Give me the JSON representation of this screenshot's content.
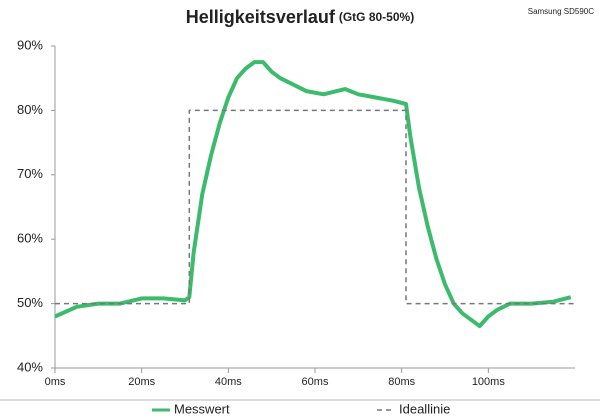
{
  "chart_data": {
    "type": "line",
    "title": "Helligkeitsverlauf",
    "subtitle": "(GtG 80-50%)",
    "note": "Samsung SD590C",
    "xlim": [
      0,
      120
    ],
    "xticks": [
      {
        "value": 0,
        "label": "0ms"
      },
      {
        "value": 20,
        "label": "20ms"
      },
      {
        "value": 40,
        "label": "40ms"
      },
      {
        "value": 60,
        "label": "60ms"
      },
      {
        "value": 80,
        "label": "80ms"
      },
      {
        "value": 100,
        "label": "100ms"
      }
    ],
    "ylim": [
      40,
      90
    ],
    "yticks": [
      {
        "value": 40,
        "label": "40%"
      },
      {
        "value": 50,
        "label": "50%"
      },
      {
        "value": 60,
        "label": "60%"
      },
      {
        "value": 70,
        "label": "70%"
      },
      {
        "value": 80,
        "label": "80%"
      },
      {
        "value": 90,
        "label": "90%"
      }
    ],
    "grid": false,
    "series": [
      {
        "name": "Messwert",
        "color": "#3dbb6c",
        "dash": false,
        "x": [
          0,
          5,
          10,
          15,
          20,
          25,
          30,
          31,
          32,
          34,
          36,
          38,
          40,
          42,
          44,
          46,
          48,
          50,
          52,
          55,
          58,
          62,
          65,
          67,
          70,
          74,
          78,
          81,
          82,
          84,
          86,
          88,
          90,
          92,
          94,
          96,
          98,
          100,
          102,
          105,
          110,
          115,
          119
        ],
        "values": [
          48,
          49.5,
          50,
          50,
          50.8,
          50.8,
          50.5,
          51,
          58,
          67,
          73,
          78,
          82,
          85,
          86.5,
          87.5,
          87.5,
          86,
          85,
          84,
          83,
          82.5,
          83,
          83.3,
          82.5,
          82,
          81.5,
          81,
          76,
          68,
          62,
          57,
          53,
          50,
          48.5,
          47.5,
          46.5,
          48,
          49,
          50,
          50,
          50.3,
          51
        ]
      },
      {
        "name": "Ideallinie",
        "color": "#777777",
        "dash": true,
        "x": [
          0,
          31,
          31,
          81,
          81,
          120
        ],
        "values": [
          50,
          50,
          80,
          80,
          50,
          50
        ]
      }
    ]
  }
}
